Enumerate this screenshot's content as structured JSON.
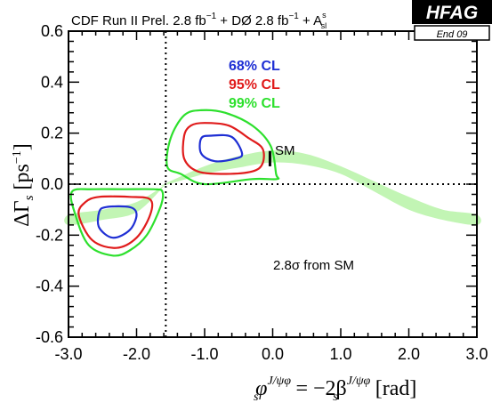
{
  "chart_data": {
    "type": "contour",
    "header": {
      "cdf": "CDF  Run II Prel. 2.8 fb",
      "cdf_sup": "−1",
      "d0": " + DØ  2.8 fb",
      "d0_sup": "−1",
      "asl_prefix": " + A",
      "asl_sup": "s",
      "asl_sub": "sl"
    },
    "badge": {
      "title": "HFAG",
      "subtitle": "End 09"
    },
    "xlabel": {
      "main": "φ",
      "sup": "J/ψφ",
      "sub": "s",
      "rest": " = −2β",
      "rest_sup": "J/ψφ",
      "rest_sub": "s",
      "unit": " [rad]"
    },
    "ylabel": {
      "main": "ΔΓ",
      "sub": "s",
      "unit": " [ps",
      "unit_sup": "−1",
      "close": "]"
    },
    "xlim": [
      -3.0,
      3.0
    ],
    "ylim": [
      -0.6,
      0.6
    ],
    "xticks": [
      -3.0,
      -2.0,
      -1.0,
      0.0,
      1.0,
      2.0,
      3.0
    ],
    "xtick_labels": [
      "-3.0",
      "-2.0",
      "-1.0",
      "0.0",
      "1.0",
      "2.0",
      "3.0"
    ],
    "yticks": [
      -0.6,
      -0.4,
      -0.2,
      0.0,
      0.2,
      0.4,
      0.6
    ],
    "ytick_labels": [
      "-0.6",
      "-0.4",
      "-0.2",
      "0.0",
      "0.2",
      "0.4",
      "0.6"
    ],
    "reference_lines": {
      "vertical_x": -1.5708,
      "horizontal_y": 0.0,
      "style": "dotted"
    },
    "legend": [
      {
        "label": "68% CL",
        "color": "#1f2fd4"
      },
      {
        "label": "95% CL",
        "color": "#e01c1c"
      },
      {
        "label": "99% CL",
        "color": "#2de02d"
      }
    ],
    "sm_label": "SM",
    "sm_point": {
      "x": -0.04,
      "y": 0.1,
      "err": 0.03
    },
    "significance_note": "2.8σ  from SM",
    "band_color": "#c2f5b4",
    "contours": [
      {
        "name": "99% CL",
        "color": "#2de02d",
        "region": "upper",
        "points": [
          [
            -1.05,
            0.29
          ],
          [
            -0.7,
            0.28
          ],
          [
            -0.3,
            0.23
          ],
          [
            -0.03,
            0.15
          ],
          [
            0.05,
            0.04
          ],
          [
            0.06,
            0.02
          ],
          [
            -0.3,
            0.02
          ],
          [
            -1.0,
            0.0
          ],
          [
            -1.35,
            0.04
          ],
          [
            -1.55,
            0.07
          ],
          [
            -1.5,
            0.18
          ],
          [
            -1.3,
            0.27
          ]
        ]
      },
      {
        "name": "95% CL",
        "color": "#e01c1c",
        "region": "upper",
        "points": [
          [
            -1.0,
            0.24
          ],
          [
            -0.65,
            0.23
          ],
          [
            -0.35,
            0.18
          ],
          [
            -0.15,
            0.14
          ],
          [
            -0.15,
            0.08
          ],
          [
            -0.3,
            0.05
          ],
          [
            -0.7,
            0.04
          ],
          [
            -1.1,
            0.05
          ],
          [
            -1.3,
            0.1
          ],
          [
            -1.3,
            0.19
          ],
          [
            -1.2,
            0.23
          ]
        ]
      },
      {
        "name": "68% CL",
        "color": "#1f2fd4",
        "region": "upper",
        "points": [
          [
            -0.9,
            0.19
          ],
          [
            -0.6,
            0.185
          ],
          [
            -0.45,
            0.12
          ],
          [
            -0.55,
            0.1
          ],
          [
            -0.85,
            0.09
          ],
          [
            -1.05,
            0.12
          ],
          [
            -1.05,
            0.18
          ]
        ]
      },
      {
        "name": "99% CL",
        "color": "#2de02d",
        "region": "lower",
        "points": [
          [
            -2.65,
            -0.02
          ],
          [
            -2.2,
            -0.02
          ],
          [
            -1.75,
            -0.02
          ],
          [
            -1.62,
            -0.03
          ],
          [
            -1.65,
            -0.09
          ],
          [
            -1.85,
            -0.2
          ],
          [
            -2.1,
            -0.26
          ],
          [
            -2.35,
            -0.28
          ],
          [
            -2.7,
            -0.24
          ],
          [
            -2.9,
            -0.12
          ],
          [
            -2.95,
            -0.03
          ]
        ]
      },
      {
        "name": "95% CL",
        "color": "#e01c1c",
        "region": "lower",
        "points": [
          [
            -2.55,
            -0.05
          ],
          [
            -2.1,
            -0.05
          ],
          [
            -1.8,
            -0.06
          ],
          [
            -1.8,
            -0.12
          ],
          [
            -2.0,
            -0.21
          ],
          [
            -2.3,
            -0.25
          ],
          [
            -2.65,
            -0.22
          ],
          [
            -2.85,
            -0.12
          ],
          [
            -2.75,
            -0.07
          ]
        ]
      },
      {
        "name": "68% CL",
        "color": "#1f2fd4",
        "region": "lower",
        "points": [
          [
            -2.45,
            -0.09
          ],
          [
            -2.1,
            -0.09
          ],
          [
            -2.0,
            -0.12
          ],
          [
            -2.1,
            -0.18
          ],
          [
            -2.35,
            -0.21
          ],
          [
            -2.55,
            -0.17
          ],
          [
            -2.55,
            -0.11
          ]
        ]
      }
    ],
    "sm_band": {
      "upper": [
        [
          -1.57,
          0.003
        ],
        [
          -1.0,
          0.07
        ],
        [
          -0.5,
          0.11
        ],
        [
          0.0,
          0.132
        ],
        [
          0.5,
          0.118
        ],
        [
          1.0,
          0.07
        ],
        [
          1.5,
          0.01
        ],
        [
          2.0,
          -0.05
        ],
        [
          2.5,
          -0.1
        ],
        [
          3.0,
          -0.12
        ]
      ],
      "lower": [
        [
          3.0,
          -0.16
        ],
        [
          2.5,
          -0.14
        ],
        [
          2.0,
          -0.1
        ],
        [
          1.5,
          -0.03
        ],
        [
          1.0,
          0.04
        ],
        [
          0.5,
          0.075
        ],
        [
          0.0,
          0.085
        ],
        [
          -0.5,
          0.065
        ],
        [
          -1.0,
          0.04
        ],
        [
          -1.57,
          -0.003
        ]
      ],
      "upper_left": [
        [
          -3.0,
          -0.12
        ],
        [
          -2.5,
          -0.1
        ],
        [
          -2.0,
          -0.07
        ],
        [
          -1.57,
          0.0
        ]
      ],
      "lower_left": [
        [
          -1.57,
          0.0
        ],
        [
          -2.0,
          -0.11
        ],
        [
          -2.5,
          -0.14
        ],
        [
          -3.0,
          -0.16
        ]
      ]
    }
  }
}
